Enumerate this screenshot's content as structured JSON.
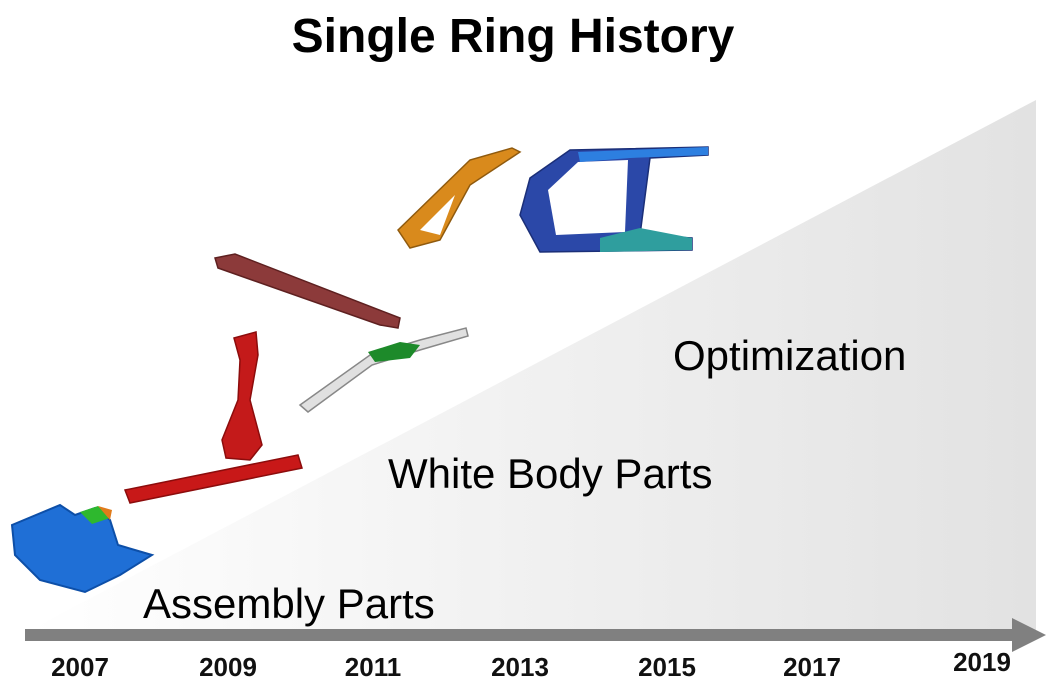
{
  "title": "Single Ring History",
  "stages": [
    "Assembly Parts",
    "White Body Parts",
    "Optimization"
  ],
  "timeline": [
    "2007",
    "2009",
    "2011",
    "2013",
    "2015",
    "2017",
    "2019"
  ]
}
